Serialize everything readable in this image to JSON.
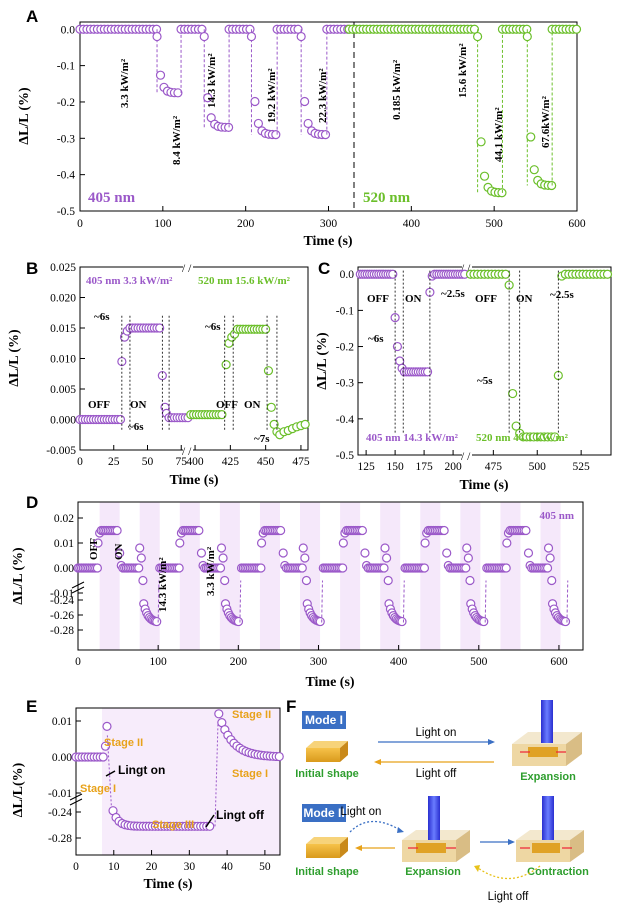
{
  "panels": {
    "A": {
      "label": "A"
    },
    "B": {
      "label": "B"
    },
    "C": {
      "label": "C"
    },
    "D": {
      "label": "D"
    },
    "E": {
      "label": "E"
    },
    "F": {
      "label": "F"
    }
  },
  "colors": {
    "purple": "#9b59c9",
    "green": "#6bbf2a",
    "violet_shade": "#f5e8fa",
    "stage": "#e8a21a",
    "mode_box": "#3a6fc4"
  },
  "chart_data": [
    {
      "id": "A",
      "type": "scatter",
      "xlabel": "Time (s)",
      "ylabel": "ΔL/L (%)",
      "xlim": [
        0,
        600
      ],
      "ylim": [
        -0.5,
        0.02
      ],
      "xticks": [
        "0",
        "100",
        "200",
        "300",
        "400",
        "500",
        "600"
      ],
      "yticks": [
        "0.0",
        "-0.1",
        "-0.2",
        "-0.3",
        "-0.4",
        "-0.5"
      ],
      "series": [
        {
          "name": "405 nm",
          "color": "#9b59c9",
          "segments": [
            {
              "x0": 0,
              "x1": 93,
              "y": 0.0
            },
            {
              "x0": 93,
              "x1": 122,
              "y": -0.175,
              "label": "3.3 kW/m²"
            },
            {
              "x0": 122,
              "x1": 150,
              "y": 0.0
            },
            {
              "x0": 150,
              "x1": 180,
              "y": -0.27,
              "label": "8.4 kW/m²"
            },
            {
              "x0": 180,
              "x1": 207,
              "y": 0.0
            },
            {
              "x0": 207,
              "x1": 238,
              "y": -0.29,
              "label": "14.3 kW/m²"
            },
            {
              "x0": 238,
              "x1": 267,
              "y": 0.0
            },
            {
              "x0": 267,
              "x1": 298,
              "y": -0.29,
              "label": "19.2 kW/m²"
            },
            {
              "x0": 298,
              "x1": 325,
              "y": 0.0,
              "label": "22.3 kW/m²"
            }
          ]
        },
        {
          "name": "520 nm",
          "color": "#6bbf2a",
          "segments": [
            {
              "x0": 325,
              "x1": 480,
              "y": 0.0,
              "label": "0.185 kW/m²"
            },
            {
              "x0": 480,
              "x1": 510,
              "y": -0.45,
              "label": "15.6 kW/m²"
            },
            {
              "x0": 510,
              "x1": 540,
              "y": 0.0,
              "label": "44.1 kW/m²"
            },
            {
              "x0": 540,
              "x1": 570,
              "y": -0.43,
              "label": "67.6kW/m²"
            },
            {
              "x0": 570,
              "x1": 600,
              "y": 0.0
            }
          ]
        }
      ],
      "annotations": [
        "405 nm",
        "520 nm"
      ],
      "divider_x": 325
    },
    {
      "id": "B",
      "type": "scatter",
      "xlabel": "Time (s)",
      "ylabel": "ΔL/L (%)",
      "ylim": [
        -0.005,
        0.025
      ],
      "xticks": [
        "0",
        "25",
        "50",
        "75",
        "400",
        "425",
        "450",
        "475"
      ],
      "yticks": [
        "0.025",
        "0.020",
        "0.015",
        "0.010",
        "0.005",
        "0.000",
        "-0.005"
      ],
      "series": [
        {
          "name": "405 nm 3.3 kW/m²",
          "color": "#9b59c9",
          "off": 0.0,
          "on": 0.015
        },
        {
          "name": "520 nm 15.6 kW/m²",
          "color": "#6bbf2a",
          "off": 0.0008,
          "on": 0.0148,
          "min": -0.0025
        }
      ],
      "annotations": [
        "OFF",
        "ON",
        "~6s",
        "~6s",
        "~6s",
        "~7s"
      ]
    },
    {
      "id": "C",
      "type": "scatter",
      "xlabel": "Time (s)",
      "ylabel": "ΔL/L (%)",
      "ylim": [
        -0.5,
        0.02
      ],
      "xticks": [
        "125",
        "150",
        "175",
        "200",
        "475",
        "500",
        "525"
      ],
      "yticks": [
        "0.0",
        "-0.1",
        "-0.2",
        "-0.3",
        "-0.4",
        "-0.5"
      ],
      "series": [
        {
          "name": "405 nm 14.3 kW/m²",
          "color": "#9b59c9",
          "off": 0.0,
          "on": -0.27
        },
        {
          "name": "520 nm 44.1 kW/m²",
          "color": "#6bbf2a",
          "off": 0.0,
          "on": -0.45
        }
      ],
      "annotations": [
        "OFF",
        "ON",
        "OFF",
        "ON",
        "~6s",
        "~2.5s",
        "~5s",
        "~2.5s"
      ]
    },
    {
      "id": "D",
      "type": "scatter",
      "xlabel": "Time (s)",
      "ylabel": "ΔL/L (%)",
      "xticks": [
        "0",
        "100",
        "200",
        "300",
        "400",
        "500",
        "600"
      ],
      "yticks_top": [
        "0.02",
        "0.01",
        "0.00",
        "-0.01"
      ],
      "yticks_bottom": [
        "-0.24",
        "-0.26",
        "-0.28"
      ],
      "series": [
        {
          "name": "405 nm",
          "color": "#9b59c9",
          "peak": 0.015,
          "trough": -0.27
        }
      ],
      "annotations": [
        "OFF",
        "ON",
        "14.3 kW/m²",
        "3.3 kW/m²",
        "405 nm"
      ]
    },
    {
      "id": "E",
      "type": "scatter",
      "xlabel": "Time (s)",
      "ylabel": "ΔL/L(%)",
      "xticks": [
        "0",
        "10",
        "20",
        "30",
        "40",
        "50"
      ],
      "yticks_top": [
        "0.01",
        "0.00",
        "-0.01"
      ],
      "yticks_bottom": [
        "-0.24",
        "-0.28"
      ],
      "series": [
        {
          "color": "#9b59c9",
          "peak": 0.012,
          "trough": -0.262
        }
      ],
      "annotations": [
        "Stage II",
        "Lingt on",
        "Stage I",
        "Stage III",
        "Lingt off",
        "Stage II",
        "Stage I"
      ]
    }
  ],
  "schematic": {
    "mode1": "Mode I",
    "mode2": "Mode II",
    "light_on": "Light on",
    "light_off": "Light off",
    "initial_shape": "Initial shape",
    "expansion": "Expansion",
    "contraction": "Contraction"
  }
}
